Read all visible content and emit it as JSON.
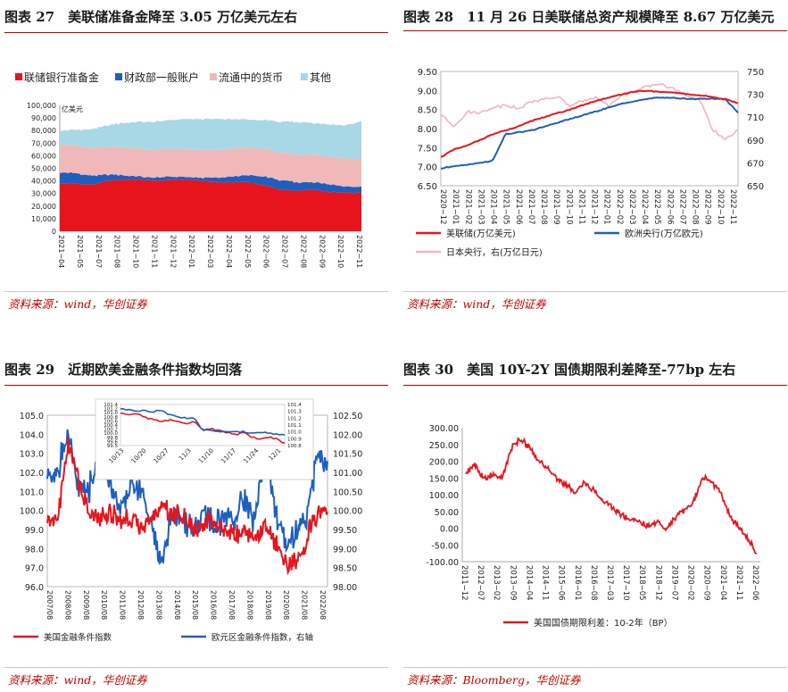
{
  "panels": [
    {
      "title": "图表 27　美联储准备金降至 3.05 万亿美元左右",
      "source": "资料来源：wind，华创证券"
    },
    {
      "title": "图表 28　11 月 26 日美联储总资产规模降至 8.67 万亿美元",
      "source": "资料来源：wind，华创证券"
    },
    {
      "title": "图表 29　近期欧美金融条件指数均回落",
      "source": "资料来源：wind，华创证券"
    },
    {
      "title": "图表 30　美国 10Y-2Y 国债期限利差降至-77bp 左右",
      "source": "资料来源：Bloomberg，华创证券"
    }
  ],
  "chart_data": [
    {
      "type": "area",
      "stacked": true,
      "unit_label": "亿美元",
      "ylim": [
        0,
        100000
      ],
      "yticks": [
        "0",
        "10,000",
        "20,000",
        "30,000",
        "40,000",
        "50,000",
        "60,000",
        "70,000",
        "80,000",
        "90,000",
        "100,000"
      ],
      "x": [
        "2021-04",
        "2021-05",
        "2021-06",
        "2021-07",
        "2021-08",
        "2021-09",
        "2021-10",
        "2021-11",
        "2021-12",
        "2022-01",
        "2022-02",
        "2022-03",
        "2022-04",
        "2022-05",
        "2022-06",
        "2022-07",
        "2022-08",
        "2022-09",
        "2022-10",
        "2022-11"
      ],
      "xtick_labels": [
        "2021−04",
        "2021−05",
        "2021−07",
        "2021−08",
        "2021−10",
        "2021−11",
        "2021−12",
        "2022−01",
        "2022−03",
        "2022−04",
        "2022−05",
        "2022−06",
        "2022−07",
        "2022−08",
        "2022−09",
        "2022−10",
        "2022−11"
      ],
      "legend_position": "top",
      "series": [
        {
          "name": "联储银行准备金",
          "color": "#e8141c",
          "values": [
            38000,
            38000,
            37000,
            40000,
            41000,
            41000,
            40000,
            41000,
            41000,
            40000,
            39000,
            39000,
            39000,
            36000,
            33000,
            32000,
            33000,
            31000,
            31000,
            30500
          ]
        },
        {
          "name": "财政部一般账户",
          "color": "#1d5fbe",
          "values": [
            9000,
            8000,
            7000,
            5000,
            3500,
            2500,
            2500,
            2500,
            2000,
            2500,
            3500,
            4500,
            5500,
            7000,
            7500,
            6500,
            6000,
            6000,
            5000,
            5000
          ]
        },
        {
          "name": "流通中的货币",
          "color": "#f0b8b8",
          "values": [
            22000,
            22000,
            22000,
            22000,
            22000,
            22000,
            22000,
            22000,
            22000,
            22000,
            22000,
            22000,
            22000,
            22000,
            22000,
            22000,
            22000,
            22000,
            22000,
            22000
          ]
        },
        {
          "name": "其他",
          "color": "#a8d8e6",
          "values": [
            11000,
            12500,
            15000,
            17000,
            19500,
            21500,
            22500,
            23000,
            24000,
            24500,
            24500,
            23500,
            22000,
            23000,
            24500,
            26000,
            25000,
            25500,
            26500,
            30000
          ]
        }
      ]
    },
    {
      "type": "line",
      "x_range": [
        "2020-12",
        "2022-11"
      ],
      "xtick_labels": [
        "2020−12",
        "2021−01",
        "2021−02",
        "2021−03",
        "2021−04",
        "2021−05",
        "2021−06",
        "2021−07",
        "2021−08",
        "2021−09",
        "2021−10",
        "2021−11",
        "2021−12",
        "2022−01",
        "2022−02",
        "2022−03",
        "2022−04",
        "2022−05",
        "2022−06",
        "2022−07",
        "2022−08",
        "2022−09",
        "2022−10",
        "2022−11"
      ],
      "ylim_left": [
        6.5,
        9.5
      ],
      "yticks_left": [
        "6.50",
        "7.00",
        "7.50",
        "8.00",
        "8.50",
        "9.00",
        "9.50"
      ],
      "ylim_right": [
        650,
        750
      ],
      "yticks_right": [
        "650",
        "670",
        "690",
        "710",
        "730",
        "750"
      ],
      "legend_position": "bottom",
      "series": [
        {
          "name": "美联储(万亿美元)",
          "axis": "left",
          "color": "#e8141c",
          "values": [
            7.25,
            7.45,
            7.55,
            7.7,
            7.85,
            7.95,
            8.05,
            8.2,
            8.3,
            8.4,
            8.5,
            8.62,
            8.72,
            8.82,
            8.9,
            8.97,
            8.99,
            8.96,
            8.95,
            8.9,
            8.88,
            8.82,
            8.77,
            8.67
          ]
        },
        {
          "name": "欧洲央行(万亿欧元)",
          "axis": "left",
          "color": "#1d5fbe",
          "values": [
            6.95,
            7.02,
            7.05,
            7.1,
            7.15,
            7.85,
            7.9,
            7.95,
            8.05,
            8.15,
            8.25,
            8.35,
            8.45,
            8.55,
            8.65,
            8.72,
            8.78,
            8.82,
            8.8,
            8.78,
            8.78,
            8.78,
            8.78,
            8.42
          ]
        },
        {
          "name": "日本央行，右(万亿日元)",
          "axis": "right",
          "color": "#f2b5bd",
          "values": [
            712,
            702,
            714,
            714,
            718,
            721,
            717,
            724,
            725,
            728,
            720,
            724,
            728,
            720,
            729,
            733,
            737,
            739,
            735,
            728,
            726,
            700,
            690,
            698
          ]
        }
      ]
    },
    {
      "type": "line",
      "x_range": [
        "2007-08",
        "2022-08"
      ],
      "xtick_labels": [
        "2007/08",
        "2008/08",
        "2009/08",
        "2010/08",
        "2011/08",
        "2012/08",
        "2013/08",
        "2014/08",
        "2015/08",
        "2016/08",
        "2017/08",
        "2018/08",
        "2019/08",
        "2020/08",
        "2021/08",
        "2022/08"
      ],
      "ylim_left": [
        96.0,
        105.0
      ],
      "yticks_left": [
        "96.0",
        "97.0",
        "98.0",
        "99.0",
        "100.0",
        "101.0",
        "102.0",
        "103.0",
        "104.0",
        "105.0"
      ],
      "ylim_right": [
        98.0,
        102.5
      ],
      "yticks_right": [
        "98.00",
        "98.50",
        "99.00",
        "99.50",
        "100.00",
        "100.50",
        "101.00",
        "101.50",
        "102.00",
        "102.50"
      ],
      "legend_position": "bottom",
      "series": [
        {
          "name": "美国金融条件指数",
          "axis": "left",
          "color": "#e8141c",
          "values": [
            99.2,
            99.6,
            103.5,
            101.5,
            99.8,
            99.7,
            99.9,
            99.5,
            99.5,
            99.2,
            99.5,
            100.3,
            99.8,
            99.7,
            98.9,
            99.2,
            99.3,
            98.8,
            98.8,
            99.0,
            98.4,
            99.3,
            98.3,
            97.3,
            97.1,
            98.5,
            99.7,
            100.2
          ]
        },
        {
          "name": "欧元区金融条件指数，右轴",
          "axis": "right",
          "color": "#1d5fbe",
          "values": [
            101.0,
            101.1,
            102.0,
            100.6,
            100.5,
            101.4,
            100.8,
            100.0,
            100.6,
            100.6,
            99.7,
            98.6,
            99.9,
            99.7,
            99.5,
            99.9,
            99.6,
            99.8,
            99.8,
            100.3,
            99.7,
            101.7,
            99.9,
            99.2,
            99.5,
            99.8,
            101.4,
            101.2
          ]
        }
      ],
      "inset": {
        "xtick_labels": [
          "10/13",
          "10/20",
          "10/27",
          "11/3",
          "11/10",
          "11/17",
          "11/24",
          "12/1"
        ],
        "yticks_left": [
          "99.5",
          "99.6",
          "99.8",
          "100.0",
          "100.2",
          "100.4",
          "100.6",
          "100.8",
          "101.0",
          "101.2",
          "101.4"
        ],
        "ylim_left": [
          99.5,
          101.4
        ],
        "yticks_right": [
          "100.8",
          "100.9",
          "101.0",
          "101.1",
          "101.2",
          "101.3",
          "101.4"
        ],
        "ylim_right": [
          100.8,
          101.4
        ],
        "series": [
          {
            "name": "美国金融条件指数",
            "axis": "left",
            "values": [
              101.0,
              100.9,
              101.0,
              100.8,
              100.7,
              100.6,
              100.7,
              100.6,
              100.5,
              100.6,
              100.2,
              100.3,
              100.2,
              100.1,
              100.0,
              100.1,
              99.9,
              99.8,
              99.9,
              99.8,
              99.6
            ]
          },
          {
            "name": "欧元区金融条件指数，右轴",
            "axis": "right",
            "values": [
              101.33,
              101.32,
              101.3,
              101.31,
              101.29,
              101.32,
              101.25,
              101.22,
              101.2,
              101.19,
              101.03,
              101.02,
              101.0,
              101.01,
              101.0,
              101.0,
              100.98,
              100.99,
              100.98,
              100.97,
              100.95
            ]
          }
        ]
      }
    },
    {
      "type": "line",
      "x_range": [
        "2011-12",
        "2022-11"
      ],
      "xtick_labels": [
        "2011−12",
        "2012−07",
        "2013−02",
        "2013−09",
        "2014−04",
        "2014−11",
        "2015−06",
        "2016−01",
        "2016−08",
        "2017−03",
        "2017−10",
        "2018−05",
        "2018−12",
        "2019−07",
        "2020−02",
        "2020−09",
        "2021−04",
        "2021−11",
        "2022−06"
      ],
      "ylim": [
        -100,
        300
      ],
      "yticks": [
        "-100.00",
        "-50.00",
        "0.00",
        "50.00",
        "100.00",
        "150.00",
        "200.00",
        "250.00",
        "300.00"
      ],
      "legend_position": "bottom",
      "series": [
        {
          "name": "美国国债期限利差：10-2年（BP）",
          "color": "#e8141c",
          "values": [
            165,
            190,
            145,
            160,
            150,
            240,
            265,
            240,
            200,
            180,
            150,
            130,
            105,
            135,
            115,
            85,
            65,
            40,
            25,
            20,
            5,
            20,
            -5,
            30,
            55,
            75,
            150,
            140,
            110,
            35,
            5,
            -30,
            -77
          ]
        }
      ]
    }
  ]
}
